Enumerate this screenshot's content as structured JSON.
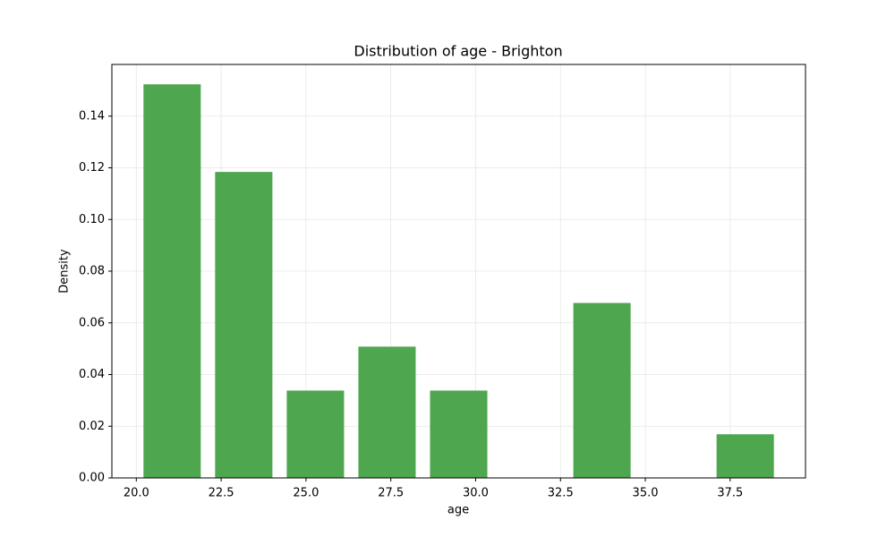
{
  "chart_data": {
    "type": "histogram",
    "title": "Distribution of age - Brighton",
    "xlabel": "age",
    "ylabel": "Density",
    "bins": [
      20,
      22.111,
      24.222,
      26.333,
      28.444,
      30.556,
      32.667,
      34.778,
      36.889,
      39
    ],
    "values": [
      0.1523,
      0.1184,
      0.0338,
      0.0508,
      0.0338,
      0,
      0.0677,
      0,
      0.0169
    ],
    "color": "#4ea64e",
    "xlim": [
      19.28,
      39.72
    ],
    "xticks": [
      {
        "value": 20,
        "label": "20.0"
      },
      {
        "value": 22.5,
        "label": "22.5"
      },
      {
        "value": 25,
        "label": "25.0"
      },
      {
        "value": 27.5,
        "label": "27.5"
      },
      {
        "value": 30,
        "label": "30.0"
      },
      {
        "value": 32.5,
        "label": "32.5"
      },
      {
        "value": 35,
        "label": "35.0"
      },
      {
        "value": 37.5,
        "label": "37.5"
      }
    ],
    "ylim": [
      0,
      0.16
    ],
    "yticks": [
      {
        "value": 0,
        "label": "0.00"
      },
      {
        "value": 0.02,
        "label": "0.02"
      },
      {
        "value": 0.04,
        "label": "0.04"
      },
      {
        "value": 0.06,
        "label": "0.06"
      },
      {
        "value": 0.08,
        "label": "0.08"
      },
      {
        "value": 0.1,
        "label": "0.10"
      },
      {
        "value": 0.12,
        "label": "0.12"
      },
      {
        "value": 0.14,
        "label": "0.14"
      }
    ],
    "grid": true
  }
}
